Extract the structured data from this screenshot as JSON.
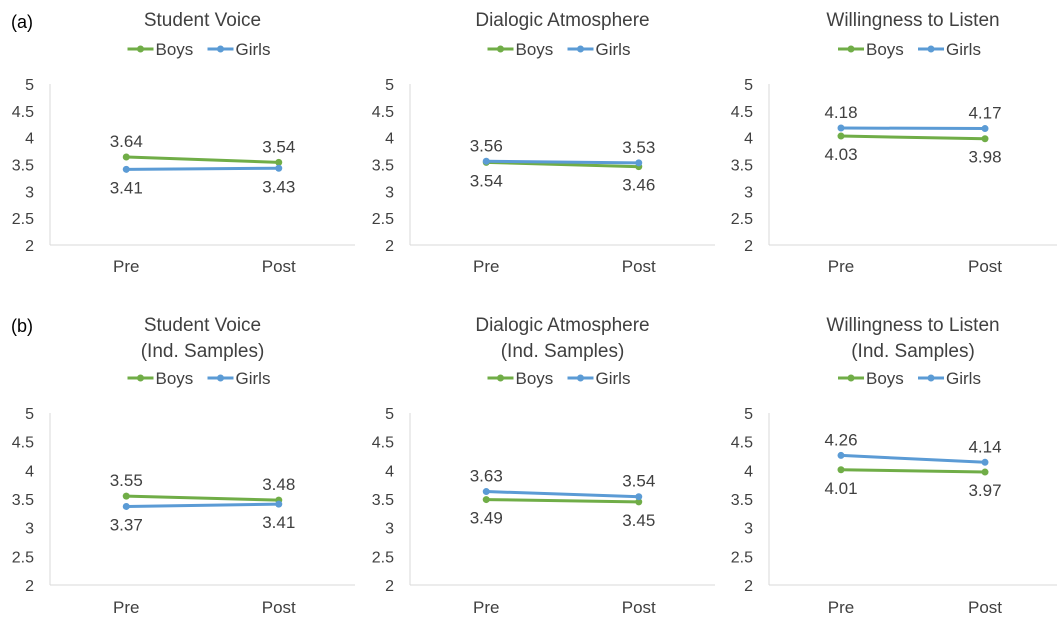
{
  "panels": [
    {
      "label": "(a)"
    },
    {
      "label": "(b)"
    }
  ],
  "chart_data": [
    {
      "type": "line",
      "title": "Student Voice",
      "categories": [
        "Pre",
        "Post"
      ],
      "ylim": [
        2,
        5
      ],
      "yticks": [
        "2",
        "2.5",
        "3",
        "3.5",
        "4",
        "4.5",
        "5"
      ],
      "grid": false,
      "legend": "top",
      "series": [
        {
          "name": "Boys",
          "color": "#70ad47",
          "values": [
            3.64,
            3.54
          ],
          "labels": [
            "3.64",
            "3.54"
          ]
        },
        {
          "name": "Girls",
          "color": "#5b9bd5",
          "values": [
            3.41,
            3.43
          ],
          "labels": [
            "3.41",
            "3.43"
          ]
        }
      ]
    },
    {
      "type": "line",
      "title": "Dialogic Atmosphere",
      "categories": [
        "Pre",
        "Post"
      ],
      "ylim": [
        2,
        5
      ],
      "yticks": [
        "2",
        "2.5",
        "3",
        "3.5",
        "4",
        "4.5",
        "5"
      ],
      "grid": false,
      "legend": "top",
      "series": [
        {
          "name": "Boys",
          "color": "#70ad47",
          "values": [
            3.54,
            3.46
          ],
          "labels": [
            "3.54",
            "3.46"
          ]
        },
        {
          "name": "Girls",
          "color": "#5b9bd5",
          "values": [
            3.56,
            3.53
          ],
          "labels": [
            "3.56",
            "3.53"
          ]
        }
      ]
    },
    {
      "type": "line",
      "title": "Willingness to Listen",
      "categories": [
        "Pre",
        "Post"
      ],
      "ylim": [
        2,
        5
      ],
      "yticks": [
        "2",
        "2.5",
        "3",
        "3.5",
        "4",
        "4.5",
        "5"
      ],
      "grid": false,
      "legend": "top",
      "series": [
        {
          "name": "Boys",
          "color": "#70ad47",
          "values": [
            4.03,
            3.98
          ],
          "labels": [
            "4.03",
            "3.98"
          ]
        },
        {
          "name": "Girls",
          "color": "#5b9bd5",
          "values": [
            4.18,
            4.17
          ],
          "labels": [
            "4.18",
            "4.17"
          ]
        }
      ]
    },
    {
      "type": "line",
      "title": "Student Voice",
      "subtitle": "(Ind. Samples)",
      "categories": [
        "Pre",
        "Post"
      ],
      "ylim": [
        2,
        5
      ],
      "yticks": [
        "2",
        "2.5",
        "3",
        "3.5",
        "4",
        "4.5",
        "5"
      ],
      "grid": false,
      "legend": "top",
      "series": [
        {
          "name": "Boys",
          "color": "#70ad47",
          "values": [
            3.55,
            3.48
          ],
          "labels": [
            "3.55",
            "3.48"
          ]
        },
        {
          "name": "Girls",
          "color": "#5b9bd5",
          "values": [
            3.37,
            3.41
          ],
          "labels": [
            "3.37",
            "3.41"
          ]
        }
      ]
    },
    {
      "type": "line",
      "title": "Dialogic Atmosphere",
      "subtitle": "(Ind. Samples)",
      "categories": [
        "Pre",
        "Post"
      ],
      "ylim": [
        2,
        5
      ],
      "yticks": [
        "2",
        "2.5",
        "3",
        "3.5",
        "4",
        "4.5",
        "5"
      ],
      "grid": false,
      "legend": "top",
      "series": [
        {
          "name": "Boys",
          "color": "#70ad47",
          "values": [
            3.49,
            3.45
          ],
          "labels": [
            "3.49",
            "3.45"
          ]
        },
        {
          "name": "Girls",
          "color": "#5b9bd5",
          "values": [
            3.63,
            3.54
          ],
          "labels": [
            "3.63",
            "3.54"
          ]
        }
      ]
    },
    {
      "type": "line",
      "title": "Willingness to Listen",
      "subtitle": "(Ind. Samples)",
      "categories": [
        "Pre",
        "Post"
      ],
      "ylim": [
        2,
        5
      ],
      "yticks": [
        "2",
        "2.5",
        "3",
        "3.5",
        "4",
        "4.5",
        "5"
      ],
      "grid": false,
      "legend": "top",
      "series": [
        {
          "name": "Boys",
          "color": "#70ad47",
          "values": [
            4.01,
            3.97
          ],
          "labels": [
            "4.01",
            "3.97"
          ]
        },
        {
          "name": "Girls",
          "color": "#5b9bd5",
          "values": [
            4.26,
            4.14
          ],
          "labels": [
            "4.26",
            "4.14"
          ]
        }
      ]
    }
  ]
}
